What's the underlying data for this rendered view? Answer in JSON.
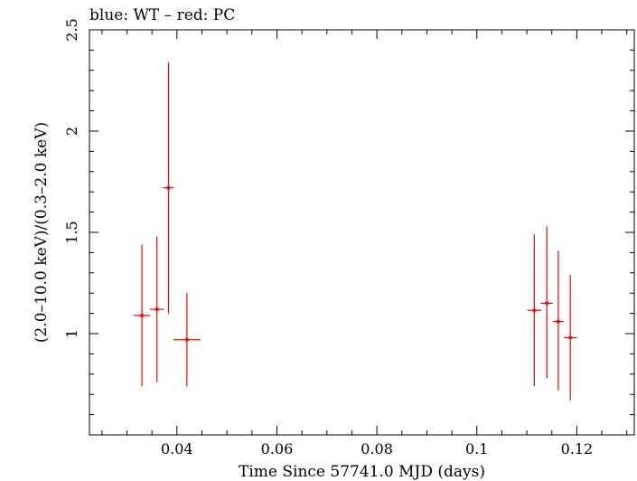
{
  "chart_data": {
    "type": "scatter",
    "title": "blue: WT – red: PC",
    "xlabel": "Time Since 57741.0 MJD (days)",
    "ylabel": "(2.0–10.0 keV)/(0.3–2.0 keV)",
    "xlim": [
      0.0225,
      0.1315
    ],
    "ylim": [
      0.5,
      2.5
    ],
    "x_ticks": [
      {
        "value": 0.04,
        "label": "0.04"
      },
      {
        "value": 0.06,
        "label": "0.06"
      },
      {
        "value": 0.08,
        "label": "0.08"
      },
      {
        "value": 0.1,
        "label": "0.1"
      },
      {
        "value": 0.12,
        "label": "0.12"
      }
    ],
    "y_ticks": [
      {
        "value": 1,
        "label": "1"
      },
      {
        "value": 1.5,
        "label": "1.5"
      },
      {
        "value": 2,
        "label": "2"
      },
      {
        "value": 2.5,
        "label": "2.5"
      }
    ],
    "grid": false,
    "series": [
      {
        "name": "PC",
        "color": "#ff0000",
        "points": [
          {
            "x": 0.033,
            "y": 1.09,
            "xerr": 0.0016,
            "ylo": 0.74,
            "yhi": 1.44
          },
          {
            "x": 0.036,
            "y": 1.12,
            "xerr": 0.0014,
            "ylo": 0.76,
            "yhi": 1.48
          },
          {
            "x": 0.0383,
            "y": 1.72,
            "xerr": 0.0011,
            "ylo": 1.1,
            "yhi": 2.34
          },
          {
            "x": 0.042,
            "y": 0.97,
            "xerr": 0.0027,
            "ylo": 0.74,
            "yhi": 1.2
          },
          {
            "x": 0.1115,
            "y": 1.115,
            "xerr": 0.0014,
            "ylo": 0.74,
            "yhi": 1.49
          },
          {
            "x": 0.114,
            "y": 1.15,
            "xerr": 0.0012,
            "ylo": 0.78,
            "yhi": 1.53
          },
          {
            "x": 0.1163,
            "y": 1.06,
            "xerr": 0.0011,
            "ylo": 0.72,
            "yhi": 1.41
          },
          {
            "x": 0.1187,
            "y": 0.98,
            "xerr": 0.0013,
            "ylo": 0.67,
            "yhi": 1.29
          }
        ]
      }
    ]
  }
}
